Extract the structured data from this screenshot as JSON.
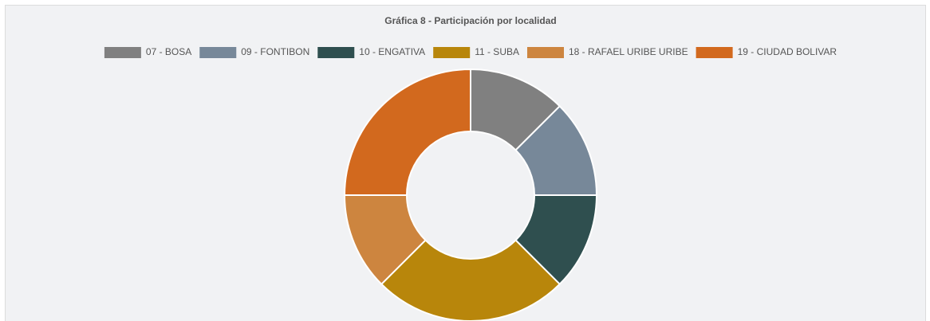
{
  "chart_data": {
    "type": "doughnut",
    "title": "Gráfica 8 - Participación por localidad",
    "categories": [
      "07 - BOSA",
      "09 - FONTIBON",
      "10 - ENGATIVA",
      "11 - SUBA",
      "18 - RAFAEL URIBE URIBE",
      "19 - CIUDAD BOLIVAR"
    ],
    "values": [
      1,
      1,
      1,
      2,
      1,
      2
    ],
    "colors": [
      "#808080",
      "#778899",
      "#2f4f4f",
      "#b8860b",
      "#cd853f",
      "#d2691e"
    ],
    "legend": "top"
  }
}
